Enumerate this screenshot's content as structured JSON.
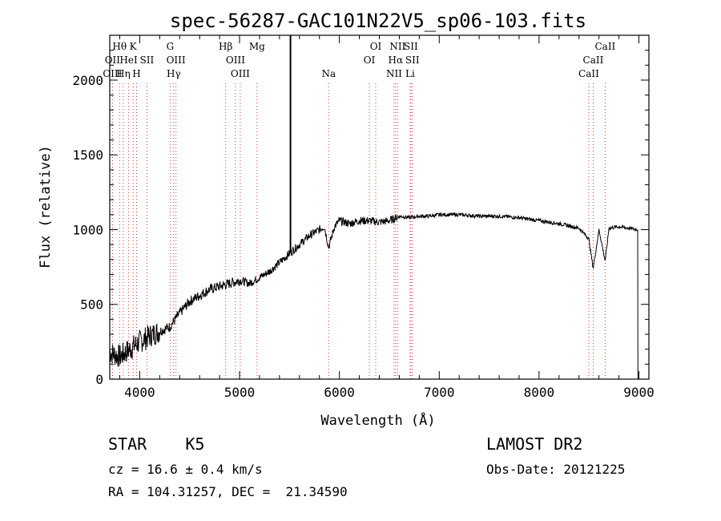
{
  "chart_data": {
    "type": "line",
    "title": "spec-56287-GAC101N22V5_sp06-103.fits",
    "xlabel": "Wavelength (Å)",
    "ylabel": "Flux (relative)",
    "xlim": [
      3700,
      9100
    ],
    "ylim": [
      0,
      2300
    ],
    "xticks": [
      4000,
      5000,
      6000,
      7000,
      8000,
      9000
    ],
    "yticks": [
      0,
      500,
      1000,
      1500,
      2000
    ],
    "series": [
      {
        "x": [
          3700,
          3800,
          3900,
          4000,
          4100,
          4200,
          4300,
          4400,
          4500,
          4600,
          4700,
          4800,
          4900,
          5000,
          5100,
          5200,
          5300,
          5400,
          5500,
          5600,
          5700,
          5800,
          5850,
          5893,
          5950,
          6000,
          6100,
          6200,
          6300,
          6400,
          6500,
          6600,
          6700,
          6800,
          6900,
          7000,
          7200,
          7400,
          7600,
          7800,
          8000,
          8200,
          8400,
          8498,
          8542,
          8600,
          8662,
          8700,
          8800,
          8900,
          8990
        ],
        "y": [
          180,
          150,
          200,
          250,
          290,
          320,
          350,
          440,
          520,
          560,
          600,
          620,
          640,
          660,
          640,
          680,
          720,
          780,
          840,
          900,
          960,
          1000,
          1020,
          880,
          1020,
          1060,
          1040,
          1060,
          1060,
          1050,
          1060,
          1090,
          1080,
          1090,
          1090,
          1100,
          1100,
          1090,
          1090,
          1080,
          1060,
          1040,
          1010,
          940,
          740,
          1000,
          790,
          1010,
          1020,
          1010,
          1000
        ]
      }
    ],
    "spike": {
      "x": 5510,
      "y": 2300
    },
    "lines": [
      {
        "label": "Hθ",
        "x": 3798,
        "row": 1
      },
      {
        "label": "K",
        "x": 3934,
        "row": 1
      },
      {
        "label": "OII",
        "x": 3727,
        "row": 2
      },
      {
        "label": "HeI",
        "x": 3889,
        "row": 2
      },
      {
        "label": "SII",
        "x": 4072,
        "row": 2
      },
      {
        "label": "OIII",
        "x": 3727,
        "row": 3
      },
      {
        "label": "Hη",
        "x": 3835,
        "row": 3
      },
      {
        "label": "H",
        "x": 3969,
        "row": 3
      },
      {
        "label": "G",
        "x": 4305,
        "row": 1
      },
      {
        "label": "OIII",
        "x": 4363,
        "row": 2
      },
      {
        "label": "Hγ",
        "x": 4340,
        "row": 3
      },
      {
        "label": "Hβ",
        "x": 4861,
        "row": 1
      },
      {
        "label": "OIII",
        "x": 4959,
        "row": 2
      },
      {
        "label": "OIII",
        "x": 5007,
        "row": 3
      },
      {
        "label": "Mg",
        "x": 5175,
        "row": 1
      },
      {
        "label": "Na",
        "x": 5893,
        "row": 3
      },
      {
        "label": "OI",
        "x": 6364,
        "row": 1
      },
      {
        "label": "OI",
        "x": 6300,
        "row": 2
      },
      {
        "label": "NII",
        "x": 6583,
        "row": 1
      },
      {
        "label": "SII",
        "x": 6716,
        "row": 1
      },
      {
        "label": "Hα",
        "x": 6563,
        "row": 2
      },
      {
        "label": "SII",
        "x": 6731,
        "row": 2
      },
      {
        "label": "NII",
        "x": 6548,
        "row": 3
      },
      {
        "label": "Li",
        "x": 6708,
        "row": 3
      },
      {
        "label": "CaII",
        "x": 8662,
        "row": 1
      },
      {
        "label": "CaII",
        "x": 8542,
        "row": 2
      },
      {
        "label": "CaII",
        "x": 8498,
        "row": 3
      }
    ],
    "grid": false
  },
  "footer": {
    "object": "STAR    K5",
    "cz": "cz = 16.6 ± 0.4 km/s",
    "coords": "RA = 104.31257, DEC =  21.34590",
    "survey": "LAMOST DR2",
    "obsdate": "Obs-Date: 20121225"
  }
}
